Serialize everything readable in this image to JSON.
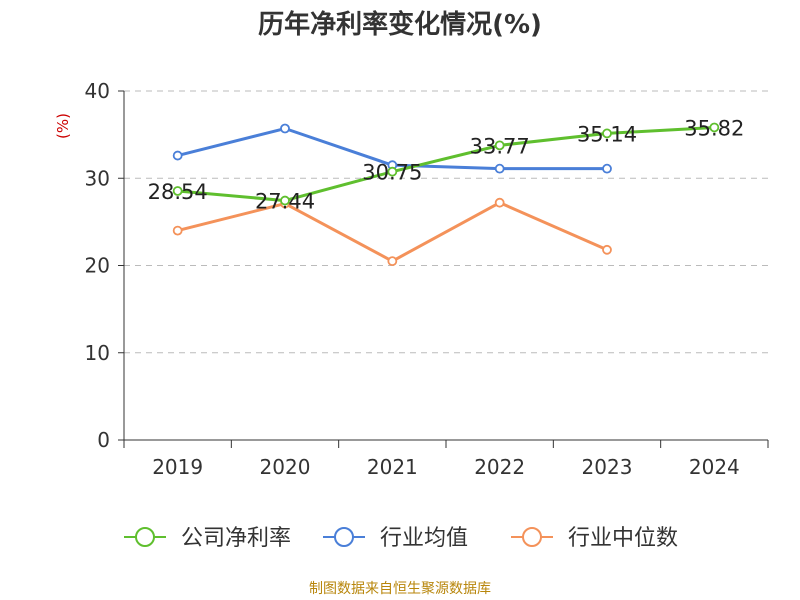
{
  "chart_data": {
    "type": "line",
    "title": "历年净利率变化情况(%)",
    "ylabel": "(%)",
    "xlabel": "",
    "ylim": [
      0,
      40
    ],
    "yticks": [
      0,
      10,
      20,
      30,
      40
    ],
    "categories": [
      "2019",
      "2020",
      "2021",
      "2022",
      "2023",
      "2024"
    ],
    "grid": true,
    "legend_position": "bottom",
    "series": [
      {
        "name": "公司净利率",
        "color": "#5fbf2e",
        "values": [
          28.54,
          27.44,
          30.75,
          33.77,
          35.14,
          35.82
        ],
        "labels": [
          "28.54",
          "27.44",
          "30.75",
          "33.77",
          "35.14",
          "35.82"
        ]
      },
      {
        "name": "行业均值",
        "color": "#4a7fd8",
        "values": [
          32.6,
          35.7,
          31.5,
          31.1,
          31.1,
          null
        ]
      },
      {
        "name": "行业中位数",
        "color": "#f4925a",
        "values": [
          24.0,
          27.1,
          20.5,
          27.2,
          21.8,
          null
        ]
      }
    ]
  },
  "source": "制图数据来自恒生聚源数据库"
}
